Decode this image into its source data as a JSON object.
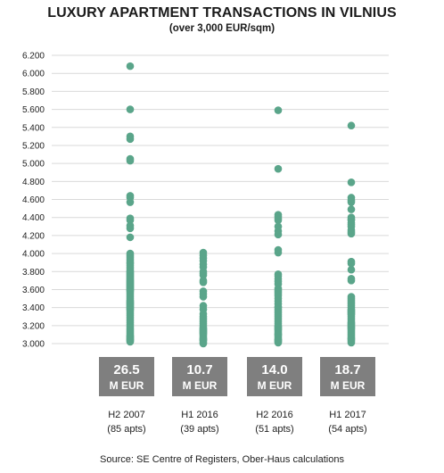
{
  "chart_data": {
    "type": "scatter",
    "title": "LUXURY APARTMENT TRANSACTIONS IN VILNIUS",
    "subtitle": "(over 3,000 EUR/sqm)",
    "source": "Source: SE Centre of Registers, Ober-Haus calculations",
    "ylim": [
      3000,
      6200
    ],
    "y_ticks": [
      3000,
      3200,
      3400,
      3600,
      3800,
      4000,
      4200,
      4400,
      4600,
      4800,
      5000,
      5200,
      5400,
      5600,
      5800,
      6000,
      6200
    ],
    "y_tick_labels": [
      "3.000",
      "3.200",
      "3.400",
      "3.600",
      "3.800",
      "4.000",
      "4.200",
      "4.400",
      "4.600",
      "4.800",
      "5.000",
      "5.200",
      "5.400",
      "5.600",
      "5.800",
      "6.000",
      "6.200"
    ],
    "grid": true,
    "dot_color": "#5aa58a",
    "box_color": "#7f7f7f",
    "categories": [
      {
        "label": "H2 2007",
        "sublabel": "(85 apts)",
        "total_value": "26.5",
        "total_unit": "M EUR",
        "values": [
          6080,
          5600,
          5300,
          5270,
          5050,
          5030,
          4640,
          4620,
          4570,
          4390,
          4370,
          4310,
          4280,
          4180,
          4000,
          3980,
          3960,
          3940,
          3920,
          3900,
          3890,
          3870,
          3850,
          3830,
          3810,
          3800,
          3790,
          3780,
          3770,
          3760,
          3750,
          3740,
          3730,
          3720,
          3710,
          3700,
          3690,
          3680,
          3670,
          3660,
          3650,
          3640,
          3630,
          3620,
          3610,
          3600,
          3590,
          3580,
          3560,
          3540,
          3520,
          3500,
          3480,
          3470,
          3460,
          3450,
          3440,
          3430,
          3420,
          3410,
          3400,
          3390,
          3380,
          3370,
          3350,
          3330,
          3310,
          3290,
          3270,
          3250,
          3230,
          3210,
          3190,
          3170,
          3150,
          3130,
          3110,
          3090,
          3080,
          3070,
          3060,
          3050,
          3040,
          3030,
          3020
        ]
      },
      {
        "label": "H1 2016",
        "sublabel": "(39 apts)",
        "total_value": "10.7",
        "total_unit": "M EUR",
        "values": [
          4010,
          3980,
          3950,
          3920,
          3880,
          3850,
          3800,
          3780,
          3760,
          3700,
          3680,
          3580,
          3550,
          3520,
          3420,
          3380,
          3330,
          3300,
          3280,
          3260,
          3240,
          3220,
          3200,
          3180,
          3170,
          3160,
          3150,
          3140,
          3130,
          3120,
          3110,
          3100,
          3080,
          3060,
          3050,
          3040,
          3030,
          3010,
          3000
        ]
      },
      {
        "label": "H2 2016",
        "sublabel": "(51 apts)",
        "total_value": "14.0",
        "total_unit": "M EUR",
        "values": [
          5590,
          4940,
          4430,
          4410,
          4390,
          4370,
          4300,
          4250,
          4210,
          4040,
          4010,
          3770,
          3750,
          3720,
          3690,
          3660,
          3610,
          3590,
          3570,
          3550,
          3530,
          3500,
          3470,
          3440,
          3410,
          3400,
          3380,
          3360,
          3340,
          3320,
          3300,
          3280,
          3260,
          3240,
          3220,
          3200,
          3190,
          3180,
          3170,
          3160,
          3150,
          3130,
          3110,
          3100,
          3090,
          3070,
          3050,
          3040,
          3030,
          3020,
          3010
        ]
      },
      {
        "label": "H1 2017",
        "sublabel": "(54 apts)",
        "total_value": "18.7",
        "total_unit": "M EUR",
        "values": [
          5420,
          4790,
          4620,
          4590,
          4570,
          4490,
          4400,
          4380,
          4370,
          4340,
          4320,
          4300,
          4260,
          4240,
          4220,
          3910,
          3890,
          3820,
          3720,
          3700,
          3520,
          3500,
          3480,
          3460,
          3440,
          3420,
          3400,
          3380,
          3370,
          3360,
          3350,
          3340,
          3330,
          3320,
          3300,
          3280,
          3260,
          3240,
          3230,
          3220,
          3210,
          3200,
          3190,
          3180,
          3170,
          3160,
          3140,
          3120,
          3100,
          3080,
          3060,
          3050,
          3030,
          3010
        ]
      }
    ]
  }
}
